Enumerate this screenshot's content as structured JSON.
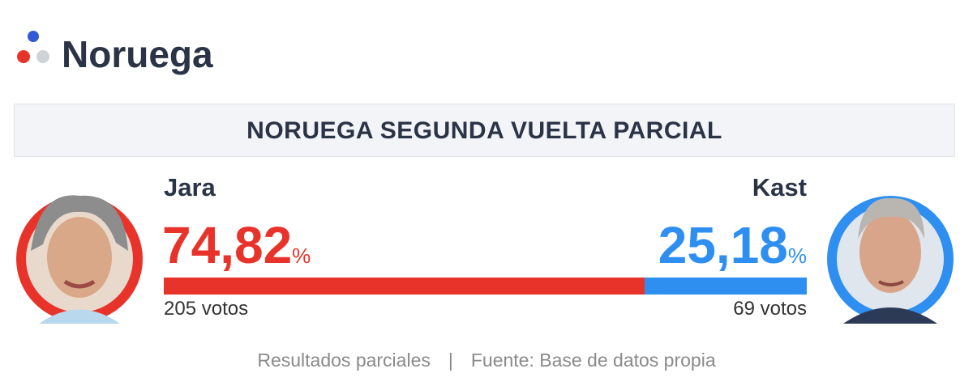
{
  "header": {
    "title": "Noruega"
  },
  "banner": "NORUEGA SEGUNDA VUELTA PARCIAL",
  "candidates": [
    {
      "name": "Jara",
      "percent": {
        "value": 74.82,
        "label": "74,82"
      },
      "unit": "%",
      "votes": 205,
      "votes_unit": "votos",
      "color": "#e8332a"
    },
    {
      "name": "Kast",
      "percent": {
        "value": 25.18,
        "label": "25,18"
      },
      "unit": "%",
      "votes": 69,
      "votes_unit": "votos",
      "color": "#2e8ff0"
    }
  ],
  "footer": {
    "note": "Resultados parciales",
    "separator": "|",
    "source": "Fuente: Base de datos propia"
  }
}
